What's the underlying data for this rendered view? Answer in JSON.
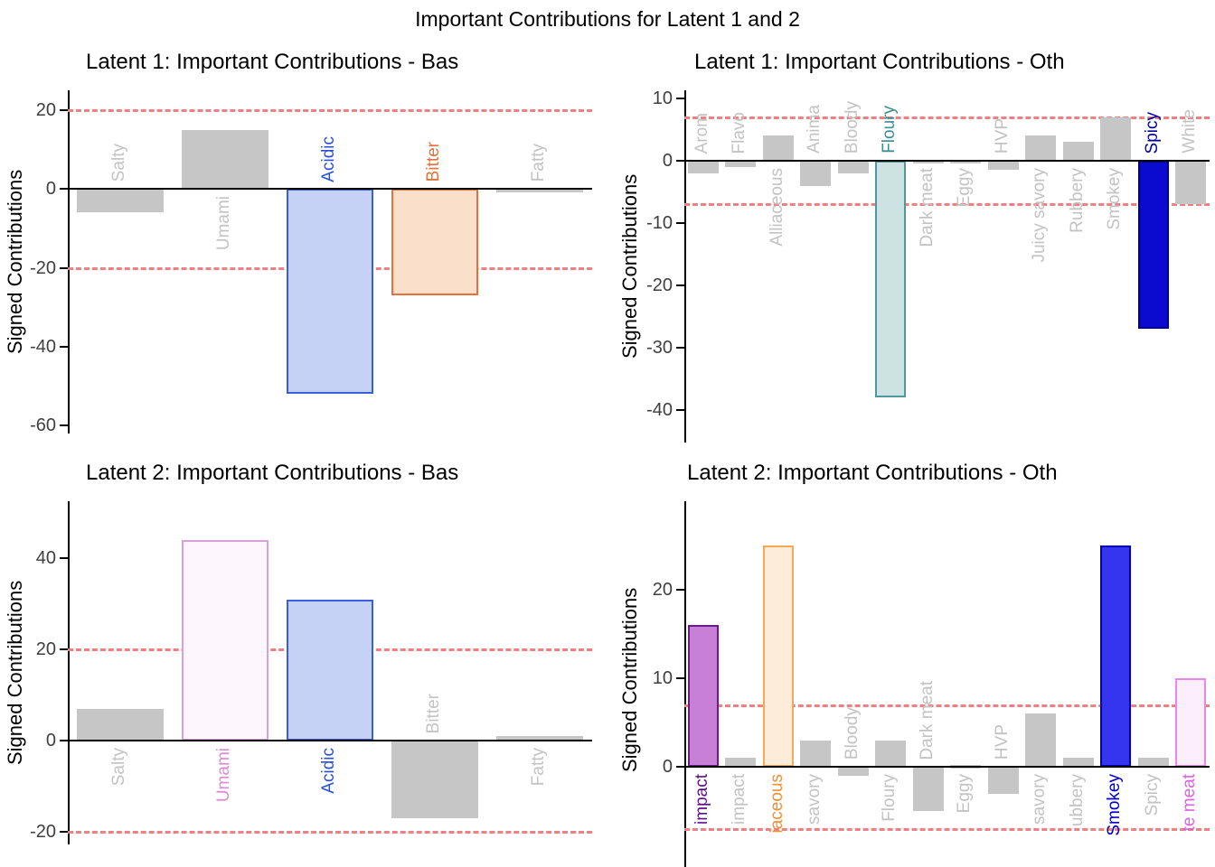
{
  "figure": {
    "main_title": "Important Contributions for Latent 1 and 2"
  },
  "styles": {
    "gray_bar_fill": "#c6c6c6",
    "gray_label_color": "#c3c3c3",
    "threshold_color": "#f08080",
    "axis_color": "#000000",
    "tick_label_color": "#3f3f3f"
  },
  "chart_data": [
    {
      "id": "latent1_basic",
      "type": "bar",
      "title": "Latent 1: Important Contributions - Bas",
      "ylabel": "Signed Contributions",
      "ylim": [
        -62,
        25
      ],
      "yticks": [
        20,
        0,
        -20,
        -40,
        -60
      ],
      "threshold_lines": [
        20,
        -20
      ],
      "grid": false,
      "categories": [
        "Salty",
        "Umami",
        "Acidic",
        "Bitter",
        "Fatty"
      ],
      "values": [
        -6,
        15,
        -52,
        -27,
        -0.4
      ],
      "highlights": {
        "2": {
          "fill": "#c5d2f5",
          "stroke": "#3a5fdc",
          "label": "#2850dc"
        },
        "3": {
          "fill": "#fadfca",
          "stroke": "#e4713a",
          "label": "#e4713a"
        }
      }
    },
    {
      "id": "latent1_other",
      "type": "bar",
      "title": "Latent 1: Important Contributions - Oth",
      "ylabel": "Signed Contributions",
      "ylim": [
        -45.2,
        11.3
      ],
      "yticks": [
        10,
        0,
        -10,
        -20,
        -30,
        -40
      ],
      "threshold_lines": [
        7,
        -7
      ],
      "grid": false,
      "categories": [
        "Arom",
        "Flavo",
        "Alliaceous",
        "Anima",
        "Bloody",
        "Floury",
        "Dark meat",
        "Eggy",
        "HVP",
        "Juicy savory",
        "Rubbery",
        "Smokey",
        "Spicy",
        "White"
      ],
      "values": [
        -2,
        -1,
        4,
        -4,
        -2,
        -38,
        0.2,
        0.2,
        -1.5,
        4,
        3,
        7,
        -27,
        -7
      ],
      "highlights": {
        "5": {
          "fill": "#cde2e3",
          "stroke": "#4f989e",
          "label": "#3d8e94"
        },
        "12": {
          "fill": "#0b0bd0",
          "stroke": "#000090",
          "label": "#0000a0"
        }
      }
    },
    {
      "id": "latent2_basic",
      "type": "bar",
      "title": "Latent 2: Important Contributions - Bas",
      "ylabel": "Signed Contributions",
      "ylim": [
        -22.7,
        52.5
      ],
      "yticks": [
        40,
        20,
        0,
        -20
      ],
      "threshold_lines": [
        20,
        -20
      ],
      "grid": false,
      "categories": [
        "Salty",
        "Umami",
        "Acidic",
        "Bitter",
        "Fatty"
      ],
      "values": [
        7,
        44,
        31,
        -17,
        1
      ],
      "highlights": {
        "1": {
          "fill": "#fdf6fc",
          "stroke": "#dba0d8",
          "label": "#dc8ad4"
        },
        "2": {
          "fill": "#c5d2f5",
          "stroke": "#3a5fdc",
          "label": "#2850dc"
        }
      }
    },
    {
      "id": "latent2_other",
      "type": "bar",
      "title": "Latent 2: Important Contributions - Oth",
      "ylabel": "Signed Contributions",
      "ylim": [
        -11.3,
        30
      ],
      "yticks": [
        20,
        10,
        0
      ],
      "threshold_lines": [
        7,
        -7
      ],
      "grid": false,
      "categories": [
        "impact",
        "impact",
        "iaceous",
        "savory",
        "Bloody",
        "Floury",
        "Dark meat",
        "Eggy",
        "HVP",
        "savory",
        "ubbery",
        "Smokey",
        "Spicy",
        "te meat"
      ],
      "values": [
        16,
        1,
        25,
        3,
        -1,
        3,
        -5,
        0.2,
        -3,
        6,
        1,
        25,
        1,
        10
      ],
      "highlights": {
        "0": {
          "fill": "#c87fd6",
          "stroke": "#6a1b8a",
          "label": "#5c0f8b"
        },
        "2": {
          "fill": "#fcecd9",
          "stroke": "#f9a857",
          "label": "#f09030"
        },
        "11": {
          "fill": "#3535f0",
          "stroke": "#0000b8",
          "label": "#0000cc"
        },
        "13": {
          "fill": "#fceefb",
          "stroke": "#ee85ee",
          "label": "#e060e0"
        }
      }
    }
  ]
}
